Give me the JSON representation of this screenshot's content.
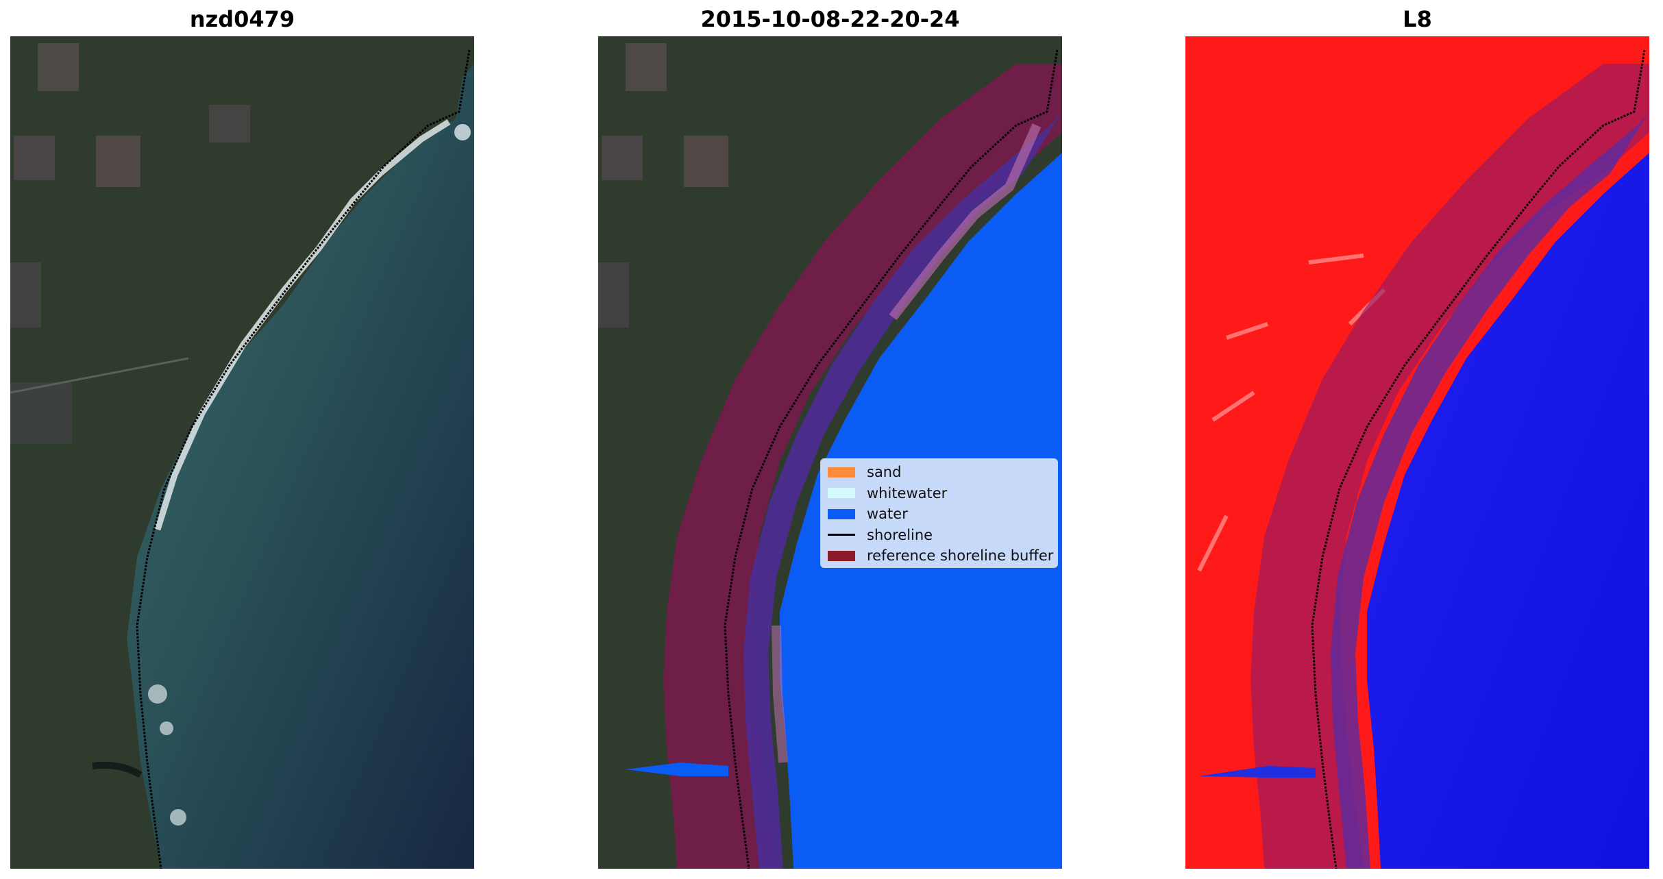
{
  "panels": [
    {
      "title": "nzd0479"
    },
    {
      "title": "2015-10-08-22-20-24"
    },
    {
      "title": "L8"
    }
  ],
  "legend": {
    "items": [
      {
        "label": "sand",
        "color": "#ff8c3c",
        "kind": "patch"
      },
      {
        "label": "whitewater",
        "color": "#d4fafa",
        "kind": "patch"
      },
      {
        "label": "water",
        "color": "#0a5cf5",
        "kind": "patch"
      },
      {
        "label": "shoreline",
        "color": "#000000",
        "kind": "line"
      },
      {
        "label": "reference shoreline buffer",
        "color": "#8b1c2c",
        "kind": "patch"
      }
    ]
  },
  "colors": {
    "land": "#2e3a2c",
    "sea": "#2f5a60",
    "deep_sea": "#1a2c40",
    "water_class": "#0a5cf5",
    "buffer": "#7a1a4c",
    "whitewater_band": "#4c2c90",
    "index_land": "#ff1a1a",
    "index_water": "#1010f0"
  }
}
